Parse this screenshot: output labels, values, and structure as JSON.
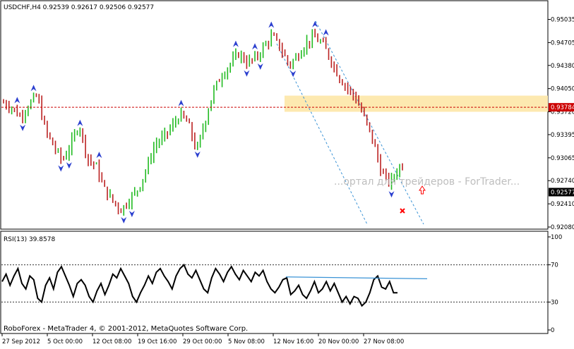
{
  "chart_data": [
    {
      "type": "candlestick",
      "title": "USDCHF,H4  0.92539 0.92617 0.92506 0.92577",
      "symbol": "USDCHF,H4",
      "ohlc_header": {
        "open": 0.92539,
        "high": 0.92617,
        "low": 0.92506,
        "close": 0.92577
      },
      "ylim": [
        0.9208,
        0.9505
      ],
      "y_ticks": [
        "0.95035",
        "0.94705",
        "0.94380",
        "0.94050",
        "0.93720",
        "0.93395",
        "0.93065",
        "0.92740",
        "0.92410",
        "0.92080"
      ],
      "y_tick_values": [
        0.95035,
        0.94705,
        0.9438,
        0.9405,
        0.9372,
        0.93395,
        0.93065,
        0.9274,
        0.9241,
        0.9208
      ],
      "x_tick_labels": [
        "27 Sep 2012",
        "5 Oct 00:00",
        "12 Oct 08:00",
        "19 Oct 16:00",
        "29 Oct 00:00",
        "5 Nov 08:00",
        "12 Nov 16:00",
        "20 Nov 00:00",
        "27 Nov 08:00"
      ],
      "bar_count": 147,
      "close_path": [
        [
          0,
          0.9385
        ],
        [
          4,
          0.9378
        ],
        [
          8,
          0.9365
        ],
        [
          12,
          0.9382
        ],
        [
          16,
          0.9395
        ],
        [
          20,
          0.9345
        ],
        [
          24,
          0.9322
        ],
        [
          28,
          0.9302
        ],
        [
          32,
          0.9325
        ],
        [
          36,
          0.9355
        ],
        [
          40,
          0.9305
        ],
        [
          44,
          0.9295
        ],
        [
          48,
          0.9262
        ],
        [
          52,
          0.9245
        ],
        [
          56,
          0.9232
        ],
        [
          60,
          0.9248
        ],
        [
          64,
          0.9262
        ],
        [
          68,
          0.929
        ],
        [
          72,
          0.9325
        ],
        [
          76,
          0.9335
        ],
        [
          80,
          0.935
        ],
        [
          84,
          0.9368
        ],
        [
          88,
          0.9355
        ],
        [
          92,
          0.9315
        ],
        [
          96,
          0.936
        ],
        [
          100,
          0.9402
        ],
        [
          104,
          0.9425
        ],
        [
          108,
          0.944
        ],
        [
          112,
          0.9455
        ],
        [
          116,
          0.9442
        ],
        [
          120,
          0.9448
        ],
        [
          124,
          0.9465
        ],
        [
          128,
          0.948
        ],
        [
          132,
          0.9462
        ],
        [
          136,
          0.9438
        ],
        [
          140,
          0.9452
        ],
        [
          144,
          0.947
        ],
        [
          148,
          0.9478
        ],
        [
          152,
          0.9468
        ],
        [
          156,
          0.9445
        ],
        [
          160,
          0.942
        ],
        [
          164,
          0.9405
        ],
        [
          168,
          0.939
        ],
        [
          172,
          0.9362
        ],
        [
          176,
          0.933
        ],
        [
          180,
          0.9285
        ],
        [
          184,
          0.927
        ],
        [
          188,
          0.9292
        ],
        [
          192,
          0.9302
        ],
        [
          196,
          0.928
        ],
        [
          200,
          0.9258
        ]
      ],
      "resistance_level": {
        "price": 0.93784,
        "label": "0.93784",
        "color": "#cc0000",
        "zone": [
          0.9372,
          0.9395
        ],
        "zone_color": "#fde9b0"
      },
      "current_price": {
        "price": 0.92577,
        "label": "0.92577"
      },
      "channel_color": "#3a93d6",
      "bull_color": "#22bb22",
      "bear_color": "#bb2222",
      "fractal_color": "#2b3fcf",
      "signal_arrow": {
        "type": "up",
        "color": "#ff0000"
      },
      "target_mark": {
        "type": "cross",
        "color": "#ff0000"
      },
      "watermark": "...ортал для трейдеров - ForTrader..."
    },
    {
      "type": "line",
      "indicator": "RSI(13)",
      "label": "RSI(13) 39.8578",
      "value": 39.8578,
      "ylim": [
        0,
        100
      ],
      "y_ticks": [
        "100",
        "70",
        "30",
        "0"
      ],
      "y_tick_values": [
        100,
        70,
        30,
        0
      ],
      "levels": [
        70,
        30
      ],
      "path": [
        [
          0,
          52
        ],
        [
          2,
          60
        ],
        [
          4,
          48
        ],
        [
          6,
          58
        ],
        [
          8,
          66
        ],
        [
          10,
          50
        ],
        [
          12,
          44
        ],
        [
          14,
          58
        ],
        [
          16,
          54
        ],
        [
          18,
          34
        ],
        [
          20,
          30
        ],
        [
          22,
          48
        ],
        [
          24,
          56
        ],
        [
          26,
          44
        ],
        [
          28,
          62
        ],
        [
          30,
          68
        ],
        [
          32,
          58
        ],
        [
          34,
          48
        ],
        [
          36,
          36
        ],
        [
          38,
          50
        ],
        [
          40,
          54
        ],
        [
          42,
          48
        ],
        [
          44,
          36
        ],
        [
          46,
          30
        ],
        [
          48,
          42
        ],
        [
          50,
          50
        ],
        [
          52,
          38
        ],
        [
          54,
          48
        ],
        [
          56,
          60
        ],
        [
          58,
          56
        ],
        [
          60,
          66
        ],
        [
          62,
          58
        ],
        [
          64,
          50
        ],
        [
          66,
          36
        ],
        [
          68,
          30
        ],
        [
          70,
          40
        ],
        [
          72,
          48
        ],
        [
          74,
          58
        ],
        [
          76,
          50
        ],
        [
          78,
          62
        ],
        [
          80,
          66
        ],
        [
          82,
          58
        ],
        [
          84,
          52
        ],
        [
          86,
          44
        ],
        [
          88,
          58
        ],
        [
          90,
          66
        ],
        [
          92,
          70
        ],
        [
          94,
          60
        ],
        [
          96,
          56
        ],
        [
          98,
          64
        ],
        [
          100,
          54
        ],
        [
          102,
          44
        ],
        [
          104,
          40
        ],
        [
          106,
          56
        ],
        [
          108,
          66
        ],
        [
          110,
          60
        ],
        [
          112,
          52
        ],
        [
          114,
          62
        ],
        [
          116,
          68
        ],
        [
          118,
          60
        ],
        [
          120,
          54
        ],
        [
          122,
          64
        ],
        [
          124,
          58
        ],
        [
          126,
          52
        ],
        [
          128,
          62
        ],
        [
          130,
          58
        ],
        [
          132,
          64
        ],
        [
          134,
          52
        ],
        [
          136,
          44
        ],
        [
          138,
          40
        ],
        [
          140,
          46
        ],
        [
          142,
          54
        ],
        [
          144,
          56
        ],
        [
          146,
          38
        ],
        [
          148,
          42
        ],
        [
          150,
          48
        ],
        [
          152,
          38
        ],
        [
          154,
          34
        ],
        [
          156,
          42
        ],
        [
          158,
          52
        ],
        [
          160,
          40
        ],
        [
          162,
          44
        ],
        [
          164,
          52
        ],
        [
          166,
          42
        ],
        [
          168,
          50
        ],
        [
          170,
          40
        ],
        [
          172,
          30
        ],
        [
          174,
          36
        ],
        [
          176,
          28
        ],
        [
          178,
          36
        ],
        [
          180,
          34
        ],
        [
          182,
          26
        ],
        [
          184,
          30
        ],
        [
          186,
          40
        ],
        [
          188,
          54
        ],
        [
          190,
          58
        ],
        [
          192,
          46
        ],
        [
          194,
          44
        ],
        [
          196,
          52
        ],
        [
          198,
          40
        ],
        [
          200,
          40
        ]
      ],
      "trend_line": {
        "from": [
          128,
          57
        ],
        "to": [
          200,
          55
        ],
        "color": "#3a93d6"
      }
    }
  ],
  "footer": "RoboForex - MetaTrader 4, © 2001-2012, MetaQuotes Software Corp."
}
